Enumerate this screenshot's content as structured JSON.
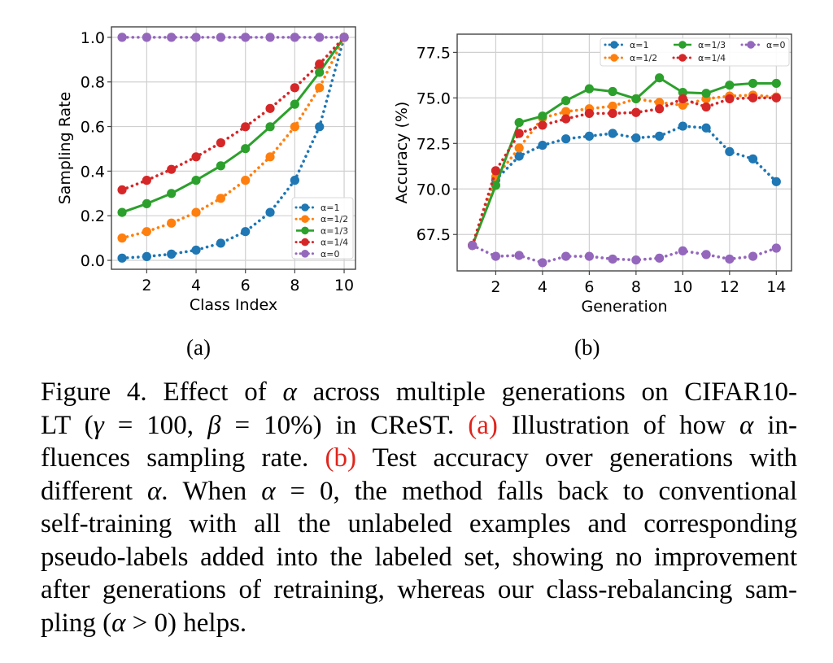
{
  "figure": {
    "sub_labels": {
      "a": "(a)",
      "b": "(b)"
    },
    "caption_lines": [
      [
        {
          "t": "Figure 4. Effect of "
        },
        {
          "t": "α",
          "m": 1
        },
        {
          "t": " across multiple generations on CIFAR10-"
        }
      ],
      [
        {
          "t": "LT ("
        },
        {
          "t": "γ",
          "m": 1
        },
        {
          "t": " = 100, "
        },
        {
          "t": "β",
          "m": 1
        },
        {
          "t": " = 10%) in CReST. "
        },
        {
          "t": "(a)",
          "r": 1
        },
        {
          "t": " Illustration of how "
        },
        {
          "t": "α",
          "m": 1
        },
        {
          "t": " in-"
        }
      ],
      [
        {
          "t": "fluences sampling rate.  "
        },
        {
          "t": "(b)",
          "r": 1
        },
        {
          "t": " Test accuracy over generations with"
        }
      ],
      [
        {
          "t": "different "
        },
        {
          "t": "α",
          "m": 1
        },
        {
          "t": ".  When "
        },
        {
          "t": "α",
          "m": 1
        },
        {
          "t": " = 0, the method falls back to conventional"
        }
      ],
      [
        {
          "t": "self-training with all the unlabeled examples and corresponding"
        }
      ],
      [
        {
          "t": "pseudo-labels added into the labeled set, showing no improvement"
        }
      ],
      [
        {
          "t": "after generations of retraining, whereas our class-rebalancing sam-"
        }
      ],
      [
        {
          "t": "pling ("
        },
        {
          "t": "α",
          "m": 1
        },
        {
          "t": " > 0) helps."
        }
      ]
    ],
    "caption_link_color": "#e0241c"
  },
  "chart_data": [
    {
      "type": "line",
      "id": "a",
      "title": "",
      "xlabel": "Class Index",
      "ylabel": "Sampling Rate",
      "xlim": [
        0.57,
        10.46
      ],
      "ylim": [
        -0.04,
        1.047
      ],
      "xticks": [
        2,
        4,
        6,
        8,
        10
      ],
      "yticks": [
        0.0,
        0.2,
        0.4,
        0.6,
        0.8,
        1.0
      ],
      "ytick_labels": [
        "0.0",
        "0.2",
        "0.4",
        "0.6",
        "0.8",
        "1.0"
      ],
      "grid": true,
      "legend": {
        "placement": "bottom-right",
        "columns": 1
      },
      "x": [
        1,
        2,
        3,
        4,
        5,
        6,
        7,
        8,
        9,
        10
      ],
      "series": [
        {
          "name": "α=1",
          "color": "#1f77b4",
          "style": "dotted",
          "values": [
            0.01,
            0.017,
            0.028,
            0.046,
            0.077,
            0.129,
            0.215,
            0.359,
            0.599,
            1.0
          ]
        },
        {
          "name": "α=1/2",
          "color": "#ff7f0e",
          "style": "dotted",
          "values": [
            0.1,
            0.129,
            0.167,
            0.215,
            0.278,
            0.359,
            0.464,
            0.599,
            0.774,
            1.0
          ]
        },
        {
          "name": "α=1/3",
          "color": "#2ca02c",
          "style": "solid",
          "values": [
            0.215,
            0.254,
            0.3,
            0.359,
            0.424,
            0.501,
            0.599,
            0.7,
            0.843,
            1.0
          ]
        },
        {
          "name": "α=1/4",
          "color": "#d62728",
          "style": "dotted",
          "values": [
            0.316,
            0.359,
            0.408,
            0.464,
            0.527,
            0.599,
            0.681,
            0.774,
            0.88,
            1.0
          ]
        },
        {
          "name": "α=0",
          "color": "#9467bd",
          "style": "dotted",
          "values": [
            1.0,
            1.0,
            1.0,
            1.0,
            1.0,
            1.0,
            1.0,
            1.0,
            1.0,
            1.0
          ]
        }
      ]
    },
    {
      "type": "line",
      "id": "b",
      "title": "",
      "xlabel": "Generation",
      "ylabel": "Accuracy (%)",
      "xlim": [
        0.35,
        14.65
      ],
      "ylim": [
        65.5,
        78.5
      ],
      "xticks": [
        2,
        4,
        6,
        8,
        10,
        12,
        14
      ],
      "yticks": [
        67.5,
        70.0,
        72.5,
        75.0,
        77.5
      ],
      "ytick_labels": [
        "67.5",
        "70.0",
        "72.5",
        "75.0",
        "77.5"
      ],
      "grid": true,
      "legend": {
        "placement": "top-right",
        "columns": 3
      },
      "x": [
        1,
        2,
        3,
        4,
        5,
        6,
        7,
        8,
        9,
        10,
        11,
        12,
        13,
        14
      ],
      "series": [
        {
          "name": "α=1",
          "color": "#1f77b4",
          "style": "dotted",
          "values": [
            66.9,
            70.5,
            71.8,
            72.4,
            72.75,
            72.9,
            73.05,
            72.8,
            72.9,
            73.45,
            73.35,
            72.05,
            71.65,
            70.4
          ]
        },
        {
          "name": "α=1/2",
          "color": "#ff7f0e",
          "style": "dotted",
          "values": [
            66.9,
            70.65,
            72.25,
            73.9,
            74.25,
            74.4,
            74.55,
            74.95,
            74.75,
            74.6,
            74.95,
            75.1,
            75.15,
            75.05
          ]
        },
        {
          "name": "α=1/3",
          "color": "#2ca02c",
          "style": "solid",
          "values": [
            66.9,
            70.2,
            73.65,
            74.0,
            74.85,
            75.5,
            75.35,
            74.95,
            76.1,
            75.3,
            75.25,
            75.7,
            75.8,
            75.8
          ]
        },
        {
          "name": "α=1/4",
          "color": "#d62728",
          "style": "dotted",
          "values": [
            66.9,
            71.0,
            73.05,
            73.5,
            73.85,
            74.15,
            74.15,
            74.2,
            74.4,
            74.95,
            74.5,
            74.95,
            75.0,
            75.0
          ]
        },
        {
          "name": "α=0",
          "color": "#9467bd",
          "style": "dotted",
          "values": [
            66.9,
            66.3,
            66.35,
            65.95,
            66.3,
            66.3,
            66.15,
            66.1,
            66.2,
            66.6,
            66.4,
            66.15,
            66.3,
            66.75
          ]
        }
      ]
    }
  ]
}
